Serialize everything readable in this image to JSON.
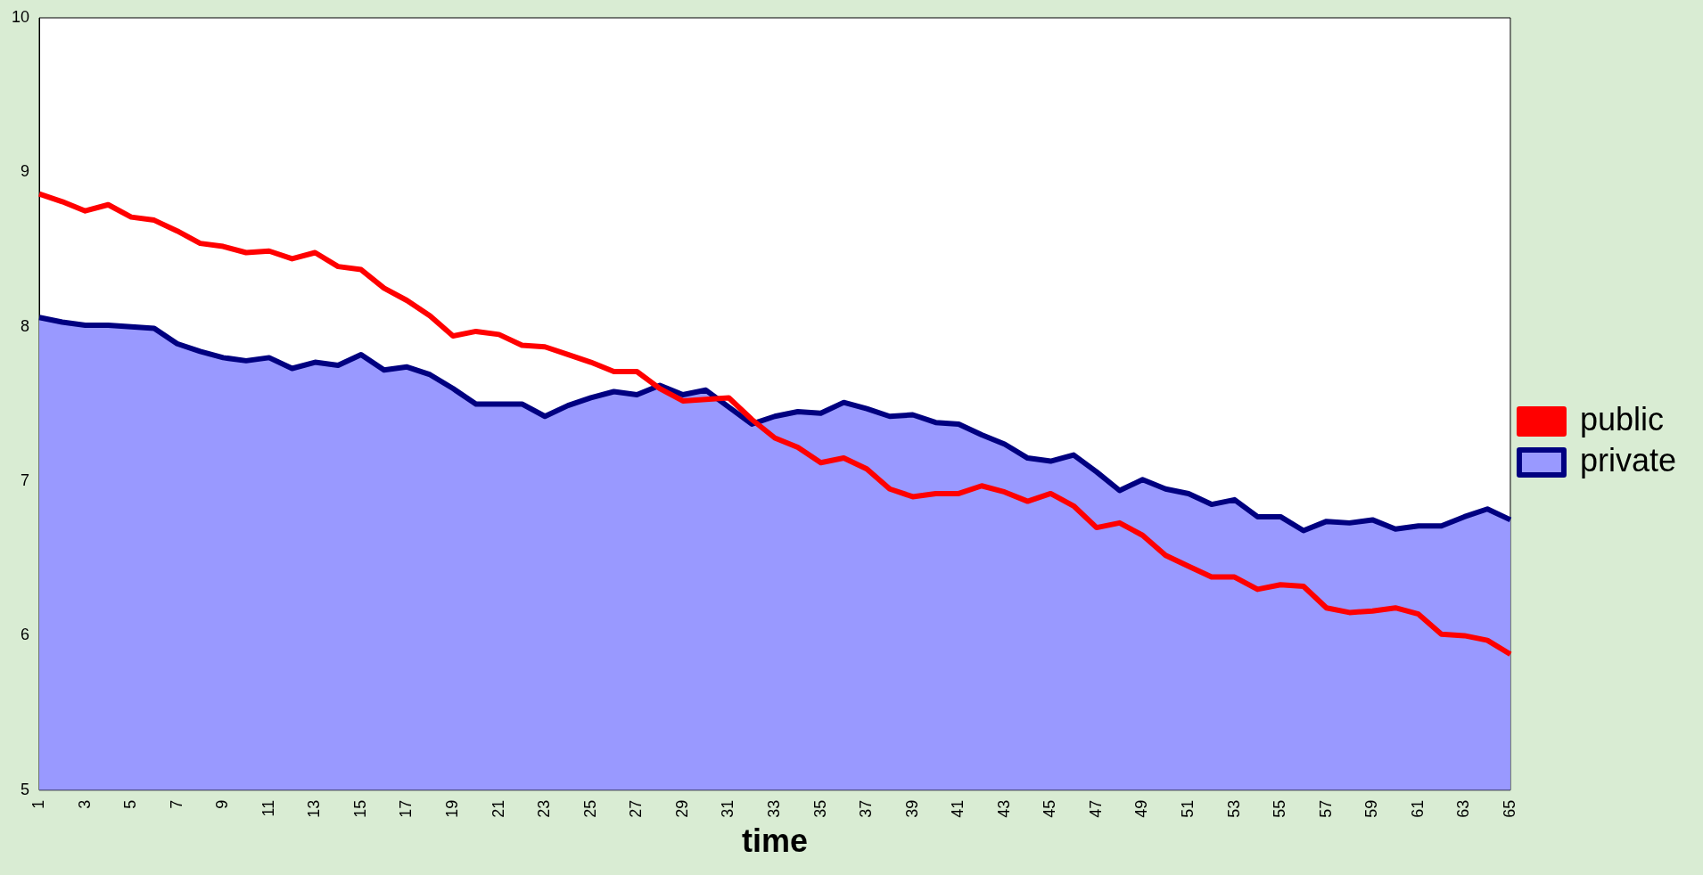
{
  "chart_data": {
    "type": "line",
    "xlabel": "time",
    "categories": [
      "1",
      null,
      "3",
      null,
      "5",
      null,
      "7",
      null,
      "9",
      null,
      "11",
      null,
      "13",
      null,
      "15",
      null,
      "17",
      null,
      "19",
      null,
      "21",
      null,
      "23",
      null,
      "25",
      null,
      "27",
      null,
      "29",
      null,
      "31",
      null,
      "33",
      null,
      "35",
      null,
      "37",
      null,
      "39",
      null,
      "41",
      null,
      "43",
      null,
      "45",
      null,
      "47",
      null,
      "49",
      null,
      "51",
      null,
      "53",
      null,
      "55",
      null,
      "57",
      null,
      "59",
      null,
      "61",
      null,
      "63",
      null,
      "65"
    ],
    "series": [
      {
        "name": "private",
        "type": "area",
        "color": "#9999ff",
        "values": [
          8.06,
          8.03,
          8.01,
          8.01,
          8.0,
          7.99,
          7.89,
          7.84,
          7.8,
          7.78,
          7.8,
          7.73,
          7.77,
          7.75,
          7.82,
          7.72,
          7.74,
          7.69,
          7.6,
          7.5,
          7.5,
          7.5,
          7.42,
          7.49,
          7.54,
          7.58,
          7.56,
          7.62,
          7.56,
          7.59,
          7.48,
          7.37,
          7.42,
          7.45,
          7.44,
          7.51,
          7.47,
          7.42,
          7.43,
          7.38,
          7.37,
          7.3,
          7.24,
          7.15,
          7.13,
          7.17,
          7.06,
          6.94,
          7.01,
          6.95,
          6.92,
          6.85,
          6.88,
          6.77,
          6.77,
          6.68,
          6.74,
          6.73,
          6.75,
          6.69,
          6.71,
          6.71,
          6.77,
          6.82,
          6.75
        ]
      },
      {
        "name": "public",
        "type": "line",
        "color": "#ff0000",
        "values": [
          8.86,
          8.81,
          8.75,
          8.79,
          8.71,
          8.69,
          8.62,
          8.54,
          8.52,
          8.48,
          8.49,
          8.44,
          8.48,
          8.39,
          8.37,
          8.25,
          8.17,
          8.07,
          7.94,
          7.97,
          7.95,
          7.88,
          7.87,
          7.82,
          7.77,
          7.71,
          7.71,
          7.6,
          7.52,
          7.53,
          7.54,
          7.4,
          7.28,
          7.22,
          7.12,
          7.15,
          7.08,
          6.95,
          6.9,
          6.92,
          6.92,
          6.97,
          6.93,
          6.87,
          6.92,
          6.84,
          6.7,
          6.73,
          6.65,
          6.52,
          6.45,
          6.38,
          6.38,
          6.3,
          6.33,
          6.32,
          6.18,
          6.15,
          6.16,
          6.18,
          6.14,
          6.01,
          6.0,
          5.97,
          5.88
        ]
      }
    ],
    "ylim": [
      5,
      10
    ],
    "yticks": [
      5,
      6,
      7,
      8,
      9,
      10
    ],
    "grid": false,
    "legend": "right",
    "marker": "none",
    "line_style": "solid"
  }
}
